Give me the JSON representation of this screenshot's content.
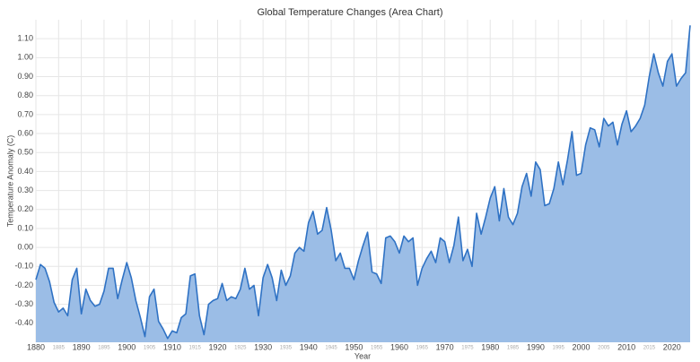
{
  "chart_data": {
    "type": "area",
    "title": "Global Temperature Changes (Area Chart)",
    "x_label": "Year",
    "y_label": "Temperature Anomaly (C)",
    "x": [
      1880,
      1881,
      1882,
      1883,
      1884,
      1885,
      1886,
      1887,
      1888,
      1889,
      1890,
      1891,
      1892,
      1893,
      1894,
      1895,
      1896,
      1897,
      1898,
      1899,
      1900,
      1901,
      1902,
      1903,
      1904,
      1905,
      1906,
      1907,
      1908,
      1909,
      1910,
      1911,
      1912,
      1913,
      1914,
      1915,
      1916,
      1917,
      1918,
      1919,
      1920,
      1921,
      1922,
      1923,
      1924,
      1925,
      1926,
      1927,
      1928,
      1929,
      1930,
      1931,
      1932,
      1933,
      1934,
      1935,
      1936,
      1937,
      1938,
      1939,
      1940,
      1941,
      1942,
      1943,
      1944,
      1945,
      1946,
      1947,
      1948,
      1949,
      1950,
      1951,
      1952,
      1953,
      1954,
      1955,
      1956,
      1957,
      1958,
      1959,
      1960,
      1961,
      1962,
      1963,
      1964,
      1965,
      1966,
      1967,
      1968,
      1969,
      1970,
      1971,
      1972,
      1973,
      1974,
      1975,
      1976,
      1977,
      1978,
      1979,
      1980,
      1981,
      1982,
      1983,
      1984,
      1985,
      1986,
      1987,
      1988,
      1989,
      1990,
      1991,
      1992,
      1993,
      1994,
      1995,
      1996,
      1997,
      1998,
      1999,
      2000,
      2001,
      2002,
      2003,
      2004,
      2005,
      2006,
      2007,
      2008,
      2009,
      2010,
      2011,
      2012,
      2013,
      2014,
      2015,
      2016,
      2017,
      2018,
      2019,
      2020,
      2021,
      2022,
      2023,
      2024
    ],
    "values": [
      -0.17,
      -0.09,
      -0.11,
      -0.18,
      -0.29,
      -0.34,
      -0.32,
      -0.36,
      -0.17,
      -0.11,
      -0.35,
      -0.22,
      -0.28,
      -0.31,
      -0.3,
      -0.23,
      -0.11,
      -0.11,
      -0.27,
      -0.17,
      -0.08,
      -0.16,
      -0.28,
      -0.37,
      -0.47,
      -0.26,
      -0.22,
      -0.39,
      -0.43,
      -0.48,
      -0.44,
      -0.45,
      -0.37,
      -0.35,
      -0.15,
      -0.14,
      -0.36,
      -0.46,
      -0.3,
      -0.28,
      -0.27,
      -0.19,
      -0.28,
      -0.26,
      -0.27,
      -0.22,
      -0.11,
      -0.22,
      -0.2,
      -0.36,
      -0.16,
      -0.09,
      -0.16,
      -0.28,
      -0.12,
      -0.2,
      -0.15,
      -0.03,
      0.0,
      -0.02,
      0.13,
      0.19,
      0.07,
      0.09,
      0.21,
      0.09,
      -0.07,
      -0.03,
      -0.11,
      -0.11,
      -0.17,
      -0.07,
      0.01,
      0.08,
      -0.13,
      -0.14,
      -0.19,
      0.05,
      0.06,
      0.03,
      -0.03,
      0.06,
      0.03,
      0.05,
      -0.2,
      -0.11,
      -0.06,
      -0.02,
      -0.08,
      0.05,
      0.03,
      -0.08,
      0.01,
      0.16,
      -0.07,
      -0.01,
      -0.1,
      0.18,
      0.07,
      0.16,
      0.26,
      0.32,
      0.14,
      0.31,
      0.16,
      0.12,
      0.18,
      0.32,
      0.39,
      0.27,
      0.45,
      0.41,
      0.22,
      0.23,
      0.31,
      0.45,
      0.33,
      0.46,
      0.61,
      0.38,
      0.39,
      0.54,
      0.63,
      0.62,
      0.53,
      0.68,
      0.64,
      0.66,
      0.54,
      0.65,
      0.72,
      0.61,
      0.64,
      0.68,
      0.75,
      0.9,
      1.02,
      0.92,
      0.85,
      0.98,
      1.02,
      0.85,
      0.89,
      0.92,
      1.17
    ],
    "color": "#2f72c4",
    "fill_color": "#9bbde6",
    "xlim": [
      1880,
      2024
    ],
    "xticks": [
      1880,
      1885,
      1890,
      1895,
      1900,
      1905,
      1910,
      1915,
      1920,
      1925,
      1930,
      1935,
      1940,
      1945,
      1950,
      1955,
      1960,
      1965,
      1970,
      1975,
      1980,
      1985,
      1990,
      1995,
      2000,
      2005,
      2010,
      2015,
      2020
    ],
    "ylim": [
      -0.5,
      1.2
    ],
    "yticks": [
      {
        "value": -0.4,
        "label": "-0.40"
      },
      {
        "value": -0.3,
        "label": "-0.30"
      },
      {
        "value": -0.2,
        "label": "-0.20"
      },
      {
        "value": -0.1,
        "label": "-0.10"
      },
      {
        "value": 0,
        "label": "0.00"
      },
      {
        "value": 0.1,
        "label": "0.10"
      },
      {
        "value": 0.2,
        "label": "0.20"
      },
      {
        "value": 0.3,
        "label": "0.30"
      },
      {
        "value": 0.4,
        "label": "0.40"
      },
      {
        "value": 0.5,
        "label": "0.50"
      },
      {
        "value": 0.6,
        "label": "0.60"
      },
      {
        "value": 0.7,
        "label": "0.70"
      },
      {
        "value": 0.8,
        "label": "0.80"
      },
      {
        "value": 0.9,
        "label": "0.90"
      },
      {
        "value": 1.0,
        "label": "1.00"
      },
      {
        "value": 1.1,
        "label": "1.10"
      }
    ],
    "grid": true
  }
}
